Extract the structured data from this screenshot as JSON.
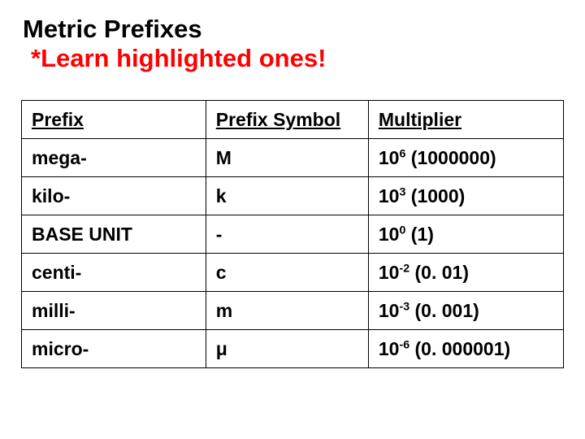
{
  "title": {
    "line1": "Metric Prefixes",
    "line2": "*Learn highlighted ones!",
    "line1_color": "#000000",
    "line2_color": "#ff0000",
    "fontsize": 31
  },
  "table": {
    "border_color": "#000000",
    "cell_fontsize": 23,
    "text_color": "#000000",
    "column_widths_pct": [
      34,
      30,
      36
    ],
    "headers": [
      "Prefix",
      "Prefix Symbol",
      "Multiplier"
    ],
    "rows": [
      {
        "prefix": "mega-",
        "symbol": "M",
        "mult_base": "10",
        "mult_exp": "6",
        "mult_paren": "(1000000)"
      },
      {
        "prefix": "kilo-",
        "symbol": "k",
        "mult_base": "10",
        "mult_exp": "3",
        "mult_paren": "(1000)"
      },
      {
        "prefix": "BASE UNIT",
        "symbol": "-",
        "mult_base": "10",
        "mult_exp": "0",
        "mult_paren": "(1)"
      },
      {
        "prefix": "centi-",
        "symbol": "c",
        "mult_base": "10",
        "mult_exp": "-2",
        "mult_paren": "(0. 01)"
      },
      {
        "prefix": "milli-",
        "symbol": "m",
        "mult_base": "10",
        "mult_exp": "-3",
        "mult_paren": "(0. 001)"
      },
      {
        "prefix": "micro-",
        "symbol": "μ",
        "mult_base": "10",
        "mult_exp": "-6",
        "mult_paren": "(0. 000001)"
      }
    ]
  }
}
